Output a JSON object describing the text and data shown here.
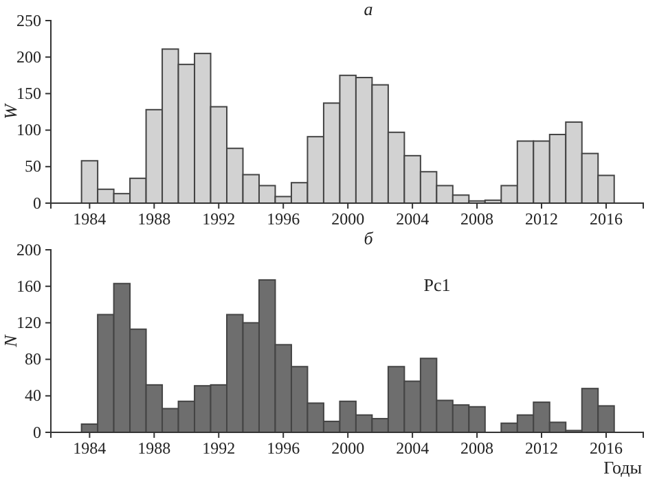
{
  "chart_data": [
    {
      "type": "bar",
      "title": "а",
      "ylabel": "W",
      "x": [
        1984,
        1985,
        1986,
        1987,
        1988,
        1989,
        1990,
        1991,
        1992,
        1993,
        1994,
        1995,
        1996,
        1997,
        1998,
        1999,
        2000,
        2001,
        2002,
        2003,
        2004,
        2005,
        2006,
        2007,
        2008,
        2009,
        2010,
        2011,
        2012,
        2013,
        2014,
        2015,
        2016
      ],
      "values": [
        58,
        19,
        13,
        34,
        128,
        211,
        190,
        205,
        132,
        75,
        39,
        24,
        9,
        28,
        91,
        137,
        175,
        172,
        162,
        97,
        65,
        43,
        24,
        11,
        3,
        4,
        24,
        85,
        85,
        94,
        111,
        68,
        38
      ],
      "color": "#d2d2d2",
      "xlim": [
        1981.6,
        2018.3
      ],
      "xticks": [
        1984,
        1988,
        1992,
        1996,
        2000,
        2004,
        2008,
        2012,
        2016
      ],
      "ylim": [
        0,
        250
      ],
      "yticks": [
        0,
        50,
        100,
        150,
        200,
        250
      ],
      "grid": false
    },
    {
      "type": "bar",
      "title": "б",
      "ylabel": "N",
      "xlabel": "Годы",
      "annotations": [
        "Pc1"
      ],
      "x": [
        1984,
        1985,
        1986,
        1987,
        1988,
        1989,
        1990,
        1991,
        1992,
        1993,
        1994,
        1995,
        1996,
        1997,
        1998,
        1999,
        2000,
        2001,
        2002,
        2003,
        2004,
        2005,
        2006,
        2007,
        2008,
        2009,
        2010,
        2011,
        2012,
        2013,
        2014,
        2015,
        2016
      ],
      "values": [
        9,
        129,
        163,
        113,
        52,
        26,
        34,
        51,
        52,
        129,
        120,
        167,
        96,
        72,
        32,
        12,
        34,
        19,
        15,
        72,
        56,
        81,
        35,
        30,
        28,
        0,
        10,
        19,
        33,
        11,
        2,
        48,
        29
      ],
      "color": "#6e6e6e",
      "xlim": [
        1981.6,
        2018.3
      ],
      "xticks": [
        1984,
        1988,
        1992,
        1996,
        2000,
        2004,
        2008,
        2012,
        2016
      ],
      "ylim": [
        0,
        200
      ],
      "yticks": [
        0,
        40,
        80,
        120,
        160,
        200
      ],
      "grid": false
    }
  ]
}
